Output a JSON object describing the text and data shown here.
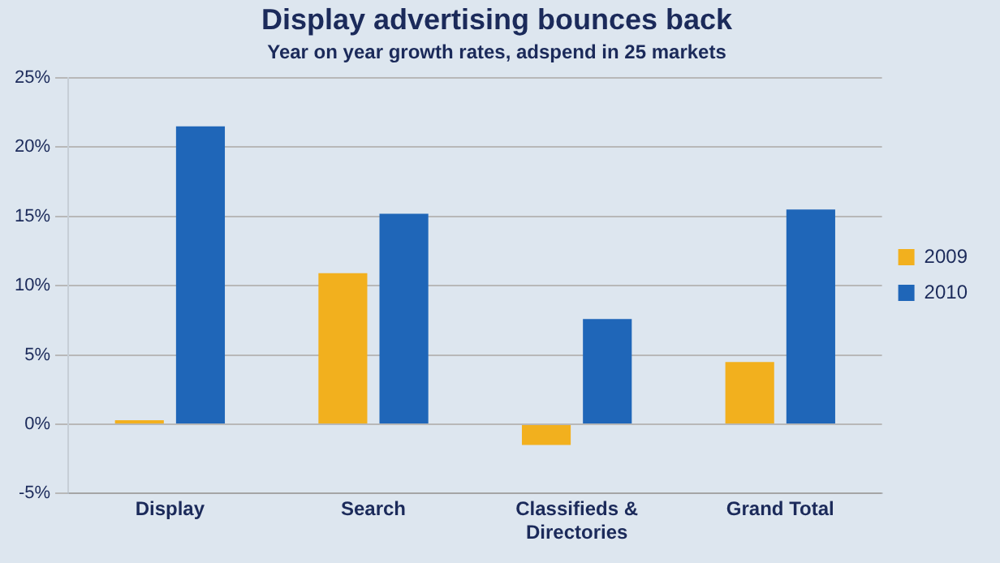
{
  "chart_data": {
    "type": "bar",
    "title": "Display advertising bounces back",
    "subtitle": "Year on year growth rates, adspend in 25 markets",
    "categories": [
      "Display",
      "Search",
      [
        "Classifieds &",
        "Directories"
      ],
      "Grand Total"
    ],
    "series": [
      {
        "name": "2009",
        "color": "#f2b01e",
        "values": [
          0.3,
          10.9,
          -1.5,
          4.5
        ]
      },
      {
        "name": "2010",
        "color": "#1f66b8",
        "values": [
          21.5,
          15.2,
          7.6,
          15.5
        ]
      }
    ],
    "ylim": [
      -5,
      25
    ],
    "yticks": [
      {
        "value": -5,
        "label": "-5%"
      },
      {
        "value": 0,
        "label": "0%"
      },
      {
        "value": 5,
        "label": "5%"
      },
      {
        "value": 10,
        "label": "10%"
      },
      {
        "value": 15,
        "label": "15%"
      },
      {
        "value": 20,
        "label": "20%"
      },
      {
        "value": 25,
        "label": "25%"
      }
    ],
    "grid": "y",
    "legend": "right"
  }
}
